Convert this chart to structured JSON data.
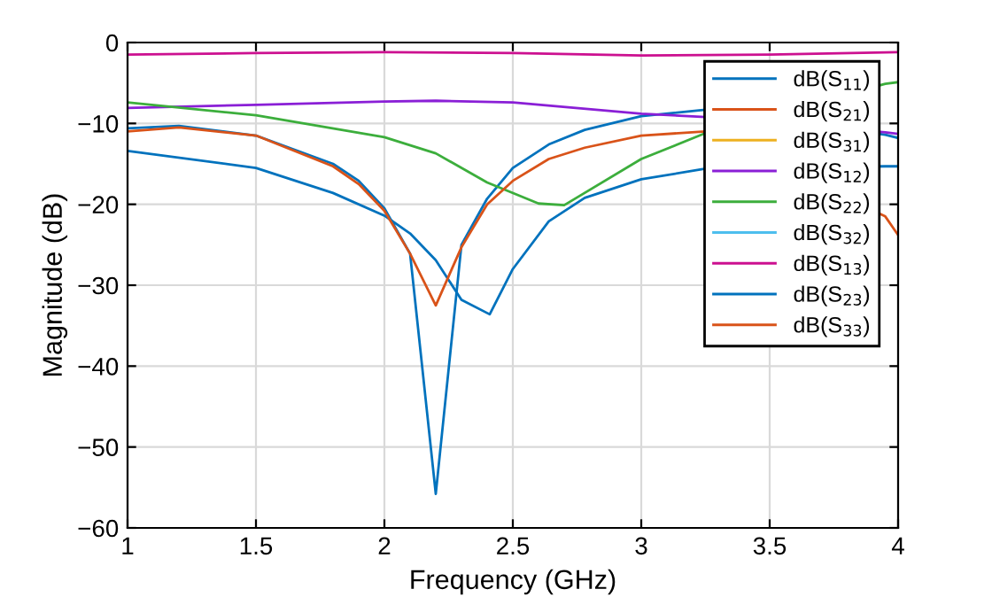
{
  "chart_data": {
    "type": "line",
    "xlabel": "Frequency (GHz)",
    "ylabel": "Magnitude (dB)",
    "xlim": [
      1,
      4
    ],
    "xticks": [
      1,
      1.5,
      2,
      2.5,
      3,
      3.5,
      4
    ],
    "ylim": [
      -60,
      0
    ],
    "yticks": [
      -60,
      -50,
      -40,
      -30,
      -20,
      -10,
      0
    ],
    "grid": true,
    "legend": "top right",
    "marker": "none",
    "line_style": "solid",
    "series": [
      {
        "name": "dB(S$_{11}$)",
        "color": "#0072bd",
        "x": [
          1,
          1.2,
          1.5,
          1.8,
          1.9,
          2.0,
          2.1,
          2.2,
          2.3,
          2.4,
          2.5,
          2.64,
          2.78,
          3.0,
          3.25,
          3.95,
          4
        ],
        "values": [
          -10.6,
          -10.3,
          -11.5,
          -15,
          -17.1,
          -20.5,
          -26.1,
          -55.8,
          -25,
          -19.3,
          -15.5,
          -12.6,
          -10.8,
          -9.1,
          -8.3,
          -11.4,
          -11.8
        ]
      },
      {
        "name": "dB(S$_{21}$)",
        "color": "#d95319"
      },
      {
        "name": "dB(S$_{31}$)",
        "color": "#edb120"
      },
      {
        "name": "dB(S$_{12}$)",
        "color": "#8a1fd6",
        "x": [
          1,
          1.5,
          2.0,
          2.2,
          2.5,
          3.0,
          3.25,
          3.95,
          4
        ],
        "values": [
          -8.1,
          -7.7,
          -7.3,
          -7.2,
          -7.4,
          -8.8,
          -9.2,
          -11.1,
          -11.3
        ]
      },
      {
        "name": "dB(S$_{22}$)",
        "color": "#3cae3c",
        "x": [
          1,
          1.5,
          2.0,
          2.2,
          2.4,
          2.6,
          2.7,
          3.0,
          3.25,
          3.95,
          4
        ],
        "values": [
          -7.4,
          -9,
          -11.7,
          -13.7,
          -17.3,
          -19.9,
          -20.1,
          -14.4,
          -11.2,
          -5.1,
          -4.9
        ]
      },
      {
        "name": "dB(S$_{32}$)",
        "color": "#4dbeee"
      },
      {
        "name": "dB(S$_{13}$)",
        "color": "#cc1090",
        "x": [
          1,
          1.5,
          2,
          2.5,
          3,
          3.5,
          4
        ],
        "values": [
          -1.5,
          -1.3,
          -1.2,
          -1.3,
          -1.6,
          -1.5,
          -1.2
        ]
      },
      {
        "name": "dB(S$_{23}$)",
        "color": "#0072bd",
        "x": [
          1,
          1.5,
          1.8,
          2.0,
          2.1,
          2.2,
          2.3,
          2.41,
          2.5,
          2.64,
          2.78,
          3.0,
          3.25,
          3.95,
          4
        ],
        "values": [
          -13.4,
          -15.5,
          -18.6,
          -21.4,
          -23.6,
          -26.9,
          -31.8,
          -33.6,
          -28,
          -22.1,
          -19.2,
          -16.9,
          -15.6,
          -15.3,
          -15.3
        ]
      },
      {
        "name": "dB(S$_{33}$)",
        "color": "#d95319",
        "x": [
          1,
          1.2,
          1.5,
          1.8,
          1.9,
          2.0,
          2.1,
          2.2,
          2.3,
          2.4,
          2.5,
          2.64,
          2.78,
          3.0,
          3.25,
          3.95,
          4
        ],
        "values": [
          -11,
          -10.5,
          -11.5,
          -15.3,
          -17.5,
          -20.8,
          -26.1,
          -32.5,
          -25.3,
          -20,
          -17.1,
          -14.4,
          -13,
          -11.5,
          -11,
          -21.5,
          -23.8
        ]
      }
    ]
  }
}
